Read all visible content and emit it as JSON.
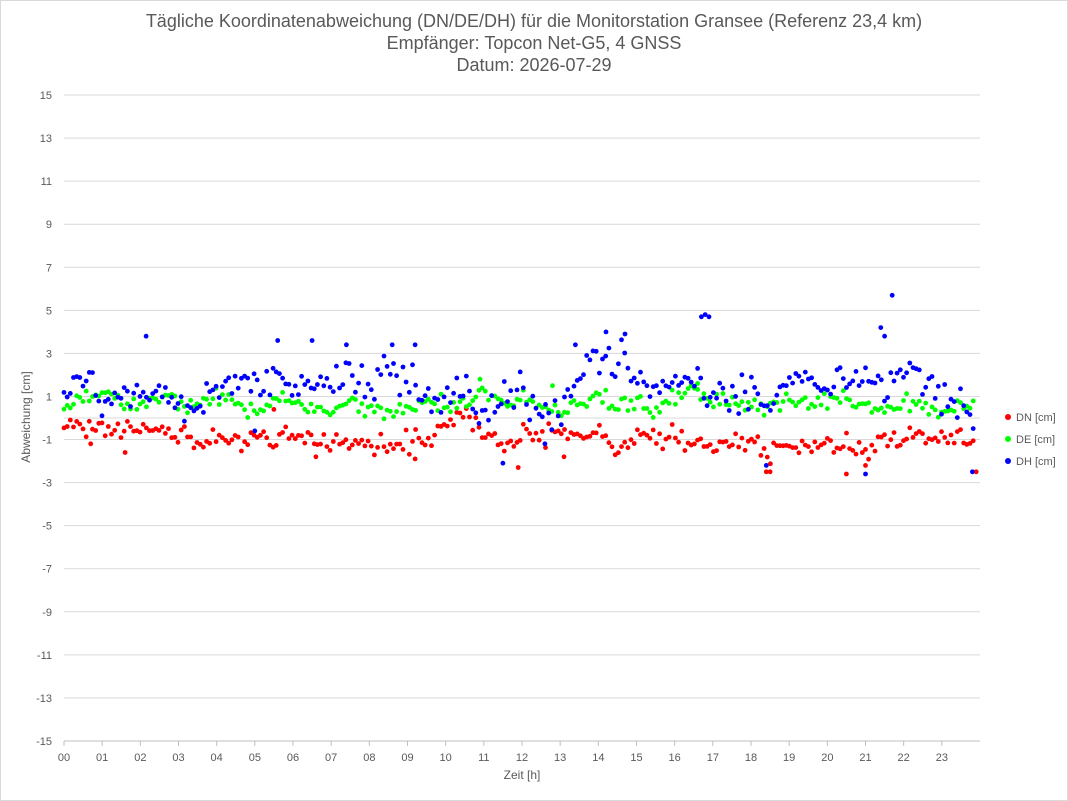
{
  "chart_data": {
    "type": "scatter",
    "title": "Tägliche Koordinatenabweichung (DN/DE/DH) für die Monitorstation Gransee (Referenz 23,4 km)",
    "subtitle": "Empfänger: Topcon Net-G5, 4 GNSS",
    "date_line": "Datum: 2026-07-29",
    "xlabel": "Zeit [h]",
    "ylabel": "Abweichung [cm]",
    "xlim": [
      0,
      24
    ],
    "ylim": [
      -15,
      15
    ],
    "x_ticks": [
      "00",
      "01",
      "02",
      "03",
      "04",
      "05",
      "06",
      "07",
      "08",
      "09",
      "10",
      "11",
      "12",
      "13",
      "14",
      "15",
      "16",
      "17",
      "18",
      "19",
      "20",
      "21",
      "22",
      "23"
    ],
    "y_ticks": [
      15,
      13,
      11,
      9,
      7,
      5,
      3,
      1,
      -1,
      -3,
      -5,
      -7,
      -9,
      -11,
      -13,
      -15
    ],
    "grid": "horizontal",
    "legend_position": "right",
    "series": [
      {
        "name": "DN [cm]",
        "color": "#ff0000",
        "profile_x": [
          0,
          1,
          2,
          2.5,
          3,
          3.5,
          4,
          4.5,
          5,
          5.5,
          6,
          6.5,
          7,
          7.5,
          8,
          8.5,
          9,
          9.5,
          10,
          10.5,
          11,
          11.5,
          12,
          12.5,
          13,
          13.5,
          14,
          14.5,
          15,
          15.5,
          16,
          16.5,
          17,
          17.5,
          18,
          18.5,
          19,
          19.5,
          20,
          20.5,
          21,
          21.5,
          22,
          22.5,
          23,
          23.8
        ],
        "profile_y": [
          -0.5,
          -0.5,
          -0.6,
          -0.5,
          -1.0,
          -1.1,
          -1.0,
          -1.1,
          -0.9,
          -1.2,
          -0.6,
          -1.0,
          -1.1,
          -1.1,
          -1.3,
          -1.2,
          -1.2,
          -1.1,
          -0.3,
          0.2,
          -0.6,
          -1.3,
          -0.8,
          -0.7,
          -0.9,
          -0.8,
          -0.6,
          -1.7,
          -0.9,
          -1.0,
          -0.9,
          -1.0,
          -1.2,
          -1.2,
          -1.1,
          -1.7,
          -1.2,
          -1.3,
          -1.3,
          -1.2,
          -1.6,
          -1.0,
          -0.9,
          -0.7,
          -1.0,
          -1.0
        ],
        "spread": 0.35,
        "outliers": [
          [
            0.7,
            -1.2
          ],
          [
            1.6,
            -1.6
          ],
          [
            5.5,
            0.4
          ],
          [
            6.6,
            -1.8
          ],
          [
            9.2,
            -1.9
          ],
          [
            11.9,
            -2.3
          ],
          [
            13.1,
            -1.8
          ],
          [
            18.4,
            -2.5
          ],
          [
            18.5,
            -2.5
          ],
          [
            20.5,
            -2.6
          ],
          [
            21.0,
            -2.2
          ],
          [
            23.9,
            -2.5
          ]
        ]
      },
      {
        "name": "DE [cm]",
        "color": "#00ff00",
        "profile_x": [
          0,
          0.5,
          1,
          2,
          2.5,
          3,
          3.5,
          4,
          4.5,
          5,
          5.5,
          6,
          6.5,
          7,
          7.5,
          8,
          8.5,
          9,
          9.5,
          10,
          10.5,
          11,
          11.5,
          12,
          12.5,
          13,
          13.5,
          14,
          14.5,
          15,
          15.5,
          16,
          16.5,
          17,
          17.5,
          18,
          18.5,
          19,
          19.5,
          20,
          20.5,
          21,
          21.5,
          22,
          22.5,
          23,
          23.8
        ],
        "profile_y": [
          0.3,
          1.1,
          0.9,
          0.6,
          1.0,
          0.7,
          0.6,
          0.9,
          0.8,
          0.1,
          0.8,
          0.8,
          0.3,
          0.4,
          0.6,
          0.5,
          0.4,
          0.3,
          0.7,
          0.5,
          0.8,
          1.3,
          0.5,
          1.1,
          0.4,
          0.5,
          0.6,
          1.1,
          0.6,
          0.5,
          0.6,
          1.0,
          1.3,
          0.6,
          0.8,
          0.5,
          0.6,
          1.0,
          0.6,
          0.6,
          0.9,
          0.5,
          0.4,
          0.8,
          0.6,
          0.5,
          0.6
        ],
        "spread": 0.3,
        "outliers": [
          [
            10.9,
            1.8
          ],
          [
            12.8,
            1.5
          ],
          [
            16.6,
            1.6
          ]
        ]
      },
      {
        "name": "DH [cm]",
        "color": "#0000ff",
        "profile_x": [
          0,
          0.5,
          1,
          1.5,
          2,
          2.5,
          3,
          3.5,
          4,
          4.5,
          5,
          5.5,
          6,
          6.5,
          7,
          7.5,
          8,
          8.5,
          9,
          9.5,
          10,
          10.5,
          11,
          11.5,
          12,
          12.5,
          13,
          13.5,
          14,
          14.5,
          15,
          15.5,
          16,
          16.5,
          17,
          17.5,
          18,
          18.5,
          19,
          19.5,
          20,
          20.5,
          21,
          21.5,
          22,
          22.5,
          23,
          23.8
        ],
        "profile_y": [
          1.3,
          1.6,
          0.7,
          1.5,
          1.0,
          1.1,
          0.7,
          0.9,
          1.3,
          1.6,
          1.3,
          1.8,
          1.5,
          1.4,
          1.6,
          2.0,
          1.5,
          2.3,
          1.9,
          0.6,
          0.9,
          1.1,
          0.0,
          0.7,
          1.4,
          0.0,
          0.1,
          1.9,
          2.6,
          2.9,
          1.9,
          1.3,
          1.6,
          2.1,
          1.3,
          0.9,
          1.6,
          0.3,
          1.8,
          1.9,
          1.4,
          1.9,
          1.9,
          1.5,
          2.1,
          1.5,
          1.4,
          0.2
        ],
        "spread": 0.6,
        "outliers": [
          [
            2.15,
            3.8
          ],
          [
            5.6,
            3.6
          ],
          [
            6.5,
            3.6
          ],
          [
            7.4,
            3.4
          ],
          [
            8.6,
            3.4
          ],
          [
            9.2,
            3.4
          ],
          [
            13.4,
            3.4
          ],
          [
            14.2,
            4.0
          ],
          [
            14.7,
            3.9
          ],
          [
            16.7,
            4.7
          ],
          [
            16.8,
            4.8
          ],
          [
            16.9,
            4.7
          ],
          [
            21.4,
            4.2
          ],
          [
            21.7,
            5.7
          ],
          [
            21.5,
            3.8
          ],
          [
            11.5,
            -2.1
          ],
          [
            18.4,
            -2.2
          ],
          [
            21.0,
            -2.6
          ],
          [
            23.8,
            -2.5
          ],
          [
            5.0,
            -0.6
          ],
          [
            12.6,
            -1.2
          ]
        ]
      }
    ]
  }
}
